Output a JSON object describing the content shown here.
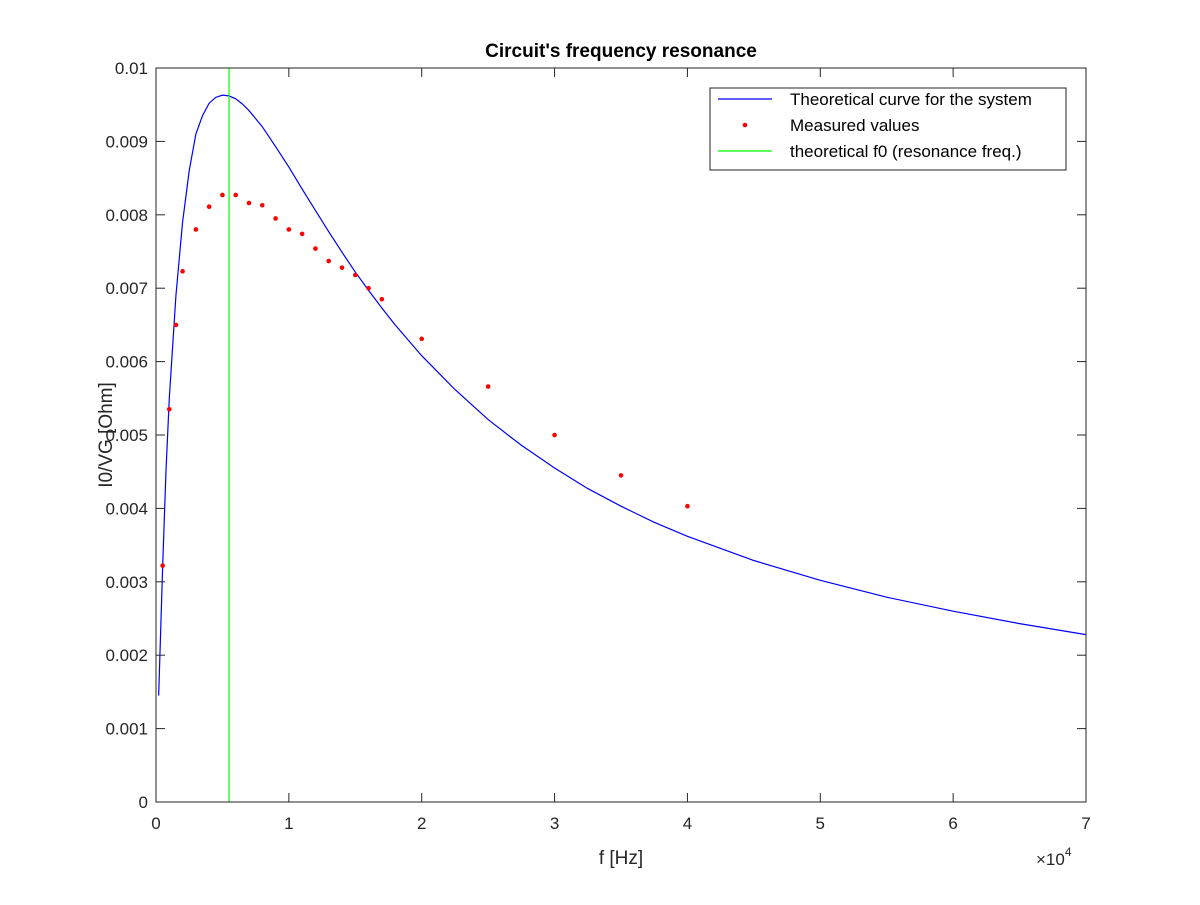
{
  "chart_data": {
    "type": "line",
    "title": "Circuit's frequency resonance",
    "xlabel": "f [Hz]",
    "ylabel": "I0/VG [Ohm]",
    "xlim": [
      0,
      70000
    ],
    "ylim": [
      0,
      0.01
    ],
    "x_ticks": [
      0,
      10000,
      20000,
      30000,
      40000,
      50000,
      60000,
      70000
    ],
    "x_tick_labels": [
      "0",
      "1",
      "2",
      "3",
      "4",
      "5",
      "6",
      "7"
    ],
    "x_exponent": {
      "base": "×10",
      "power": "4"
    },
    "y_ticks": [
      0,
      0.001,
      0.002,
      0.003,
      0.004,
      0.005,
      0.006,
      0.007,
      0.008,
      0.009,
      0.01
    ],
    "y_tick_labels": [
      "0",
      "0.001",
      "0.002",
      "0.003",
      "0.004",
      "0.005",
      "0.006",
      "0.007",
      "0.008",
      "0.009",
      "0.01"
    ],
    "grid": false,
    "legend_position": "top-right",
    "series": [
      {
        "name": "Theoretical curve for the system",
        "type": "line",
        "color": "#0000ff",
        "x": [
          200,
          500,
          750,
          1000,
          1500,
          2000,
          2500,
          3000,
          3500,
          4000,
          4500,
          5000,
          5500,
          6000,
          6500,
          7000,
          8000,
          9000,
          10000,
          11000,
          12000,
          13000,
          14000,
          15000,
          16000,
          17000,
          18000,
          20000,
          22500,
          25000,
          27500,
          30000,
          32500,
          35000,
          37500,
          40000,
          45000,
          50000,
          55000,
          60000,
          65000,
          70000
        ],
        "y": [
          0.00145,
          0.0032,
          0.0045,
          0.0055,
          0.0069,
          0.0079,
          0.0086,
          0.0091,
          0.00935,
          0.00952,
          0.0096,
          0.00963,
          0.00962,
          0.00958,
          0.00951,
          0.00942,
          0.0092,
          0.00893,
          0.00865,
          0.00835,
          0.00806,
          0.00777,
          0.00749,
          0.00722,
          0.00697,
          0.00673,
          0.0065,
          0.00608,
          0.00562,
          0.00521,
          0.00486,
          0.00455,
          0.00427,
          0.00403,
          0.00381,
          0.00362,
          0.00329,
          0.00302,
          0.00279,
          0.0026,
          0.00243,
          0.00228
        ]
      },
      {
        "name": "Measured values",
        "type": "scatter",
        "color": "#ff0000",
        "x": [
          500,
          1000,
          1500,
          2000,
          3000,
          4000,
          5000,
          6000,
          7000,
          8000,
          9000,
          10000,
          11000,
          12000,
          13000,
          14000,
          15000,
          16000,
          17000,
          20000,
          25000,
          30000,
          35000,
          40000
        ],
        "y": [
          0.00322,
          0.00535,
          0.0065,
          0.00723,
          0.0078,
          0.00811,
          0.00827,
          0.00827,
          0.00816,
          0.00813,
          0.00795,
          0.0078,
          0.00774,
          0.00754,
          0.00737,
          0.00728,
          0.00718,
          0.007,
          0.00685,
          0.00631,
          0.00566,
          0.005,
          0.00445,
          0.00403
        ]
      },
      {
        "name": "theoretical f0 (resonance freq.)",
        "type": "vline",
        "color": "#00ff00",
        "x": [
          5500,
          5500
        ],
        "y": [
          0,
          0.01
        ]
      }
    ]
  }
}
